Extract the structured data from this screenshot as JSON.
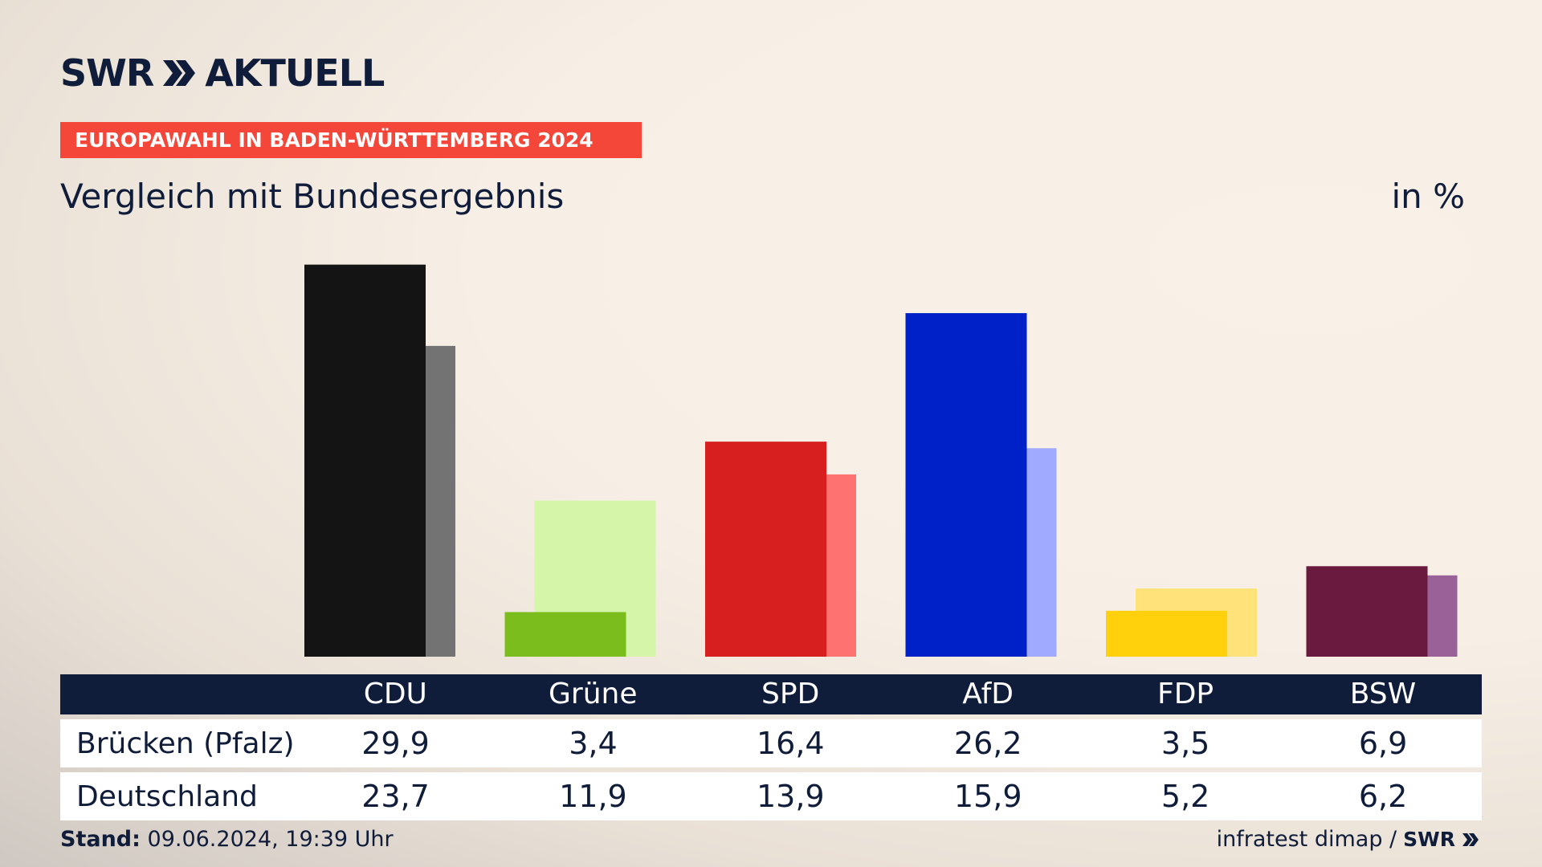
{
  "brand": {
    "name": "SWR",
    "product": "AKTUELL"
  },
  "kicker": "EUROPAWAHL IN BADEN-WÜRTTEMBERG 2024",
  "subtitle": "Vergleich mit Bundesergebnis",
  "unit": "in %",
  "chart_data": {
    "type": "bar",
    "title": "Vergleich mit Bundesergebnis",
    "unit": "in %",
    "categories": [
      "CDU",
      "Grüne",
      "SPD",
      "AfD",
      "FDP",
      "BSW"
    ],
    "series": [
      {
        "name": "Brücken (Pfalz)",
        "values": [
          29.9,
          3.4,
          16.4,
          26.2,
          3.5,
          6.9
        ]
      },
      {
        "name": "Deutschland",
        "values": [
          23.7,
          11.9,
          13.9,
          15.9,
          5.2,
          6.2
        ]
      }
    ],
    "colors": {
      "primary": [
        "#141414",
        "#7cbd1e",
        "#d71f20",
        "#0021c8",
        "#ffd00b",
        "#6b1a3f"
      ],
      "secondary": [
        "#737373",
        "#d5f5a8",
        "#ff7272",
        "#a0abff",
        "#ffe37a",
        "#9a6199"
      ]
    },
    "ylim": [
      0,
      30
    ]
  },
  "table": {
    "headers": [
      "CDU",
      "Grüne",
      "SPD",
      "AfD",
      "FDP",
      "BSW"
    ],
    "rows": [
      {
        "label": "Brücken (Pfalz)",
        "values": [
          "29,9",
          "3,4",
          "16,4",
          "26,2",
          "3,5",
          "6,9"
        ]
      },
      {
        "label": "Deutschland",
        "values": [
          "23,7",
          "11,9",
          "13,9",
          "15,9",
          "5,2",
          "6,2"
        ]
      }
    ]
  },
  "footer": {
    "stand_label": "Stand:",
    "stand_value": "09.06.2024, 19:39 Uhr",
    "source": "infratest dimap /",
    "source_brand": "SWR"
  }
}
